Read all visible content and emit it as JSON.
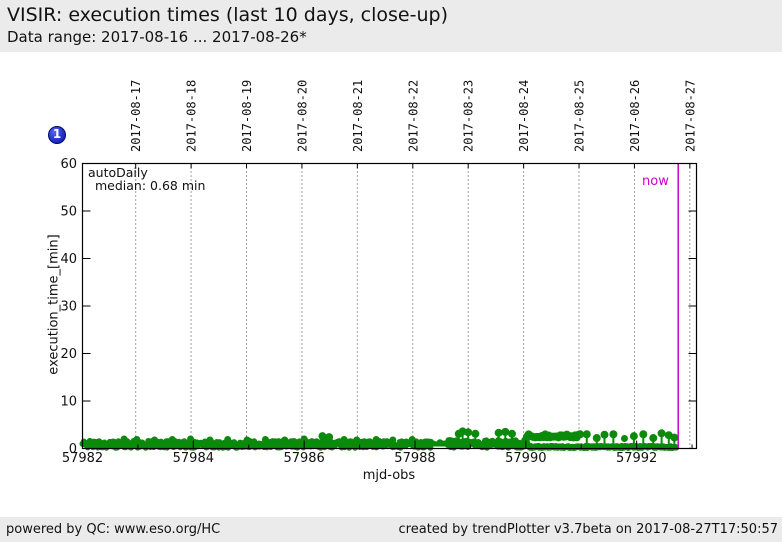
{
  "header": {
    "title": "VISIR: execution times (last 10 days, close-up)",
    "subtitle": "Data range: 2017-08-16 ... 2017-08-26*"
  },
  "badge": {
    "label": "1"
  },
  "footer": {
    "left": "powered by QC: www.eso.org/HC",
    "right": "created by trendPlotter v3.7beta on 2017-08-27T17:50:57"
  },
  "chart_data": {
    "type": "scatter",
    "title": "VISIR: execution times (last 10 days, close-up)",
    "xlabel": "mjd-obs",
    "ylabel": "execution_time_[min]",
    "xlim": [
      57982,
      57993.08
    ],
    "ylim": [
      0,
      60
    ],
    "grid": "vertical-dotted-at-dates",
    "legend": {
      "line1": "autoDaily",
      "line2": "median: 0.68 min"
    },
    "series_name": "autoDaily",
    "median_min": 0.68,
    "x_ticks_major": [
      57982,
      57984,
      57986,
      57988,
      57990,
      57992
    ],
    "x_ticks_minor": [
      57983,
      57985,
      57987,
      57989,
      57991,
      57993
    ],
    "y_ticks": [
      0,
      10,
      20,
      30,
      40,
      50,
      60
    ],
    "date_ticks": [
      {
        "label": "2017-08-17",
        "mjd": 57982.96
      },
      {
        "label": "2017-08-18",
        "mjd": 57983.96
      },
      {
        "label": "2017-08-19",
        "mjd": 57984.96
      },
      {
        "label": "2017-08-20",
        "mjd": 57985.96
      },
      {
        "label": "2017-08-21",
        "mjd": 57986.96
      },
      {
        "label": "2017-08-22",
        "mjd": 57987.96
      },
      {
        "label": "2017-08-23",
        "mjd": 57988.96
      },
      {
        "label": "2017-08-24",
        "mjd": 57989.96
      },
      {
        "label": "2017-08-25",
        "mjd": 57990.96
      },
      {
        "label": "2017-08-26",
        "mjd": 57991.96
      },
      {
        "label": "2017-08-27",
        "mjd": 57992.96
      }
    ],
    "now": {
      "label": "now",
      "mjd": 57992.75
    },
    "colors": {
      "series": "#0b8a0b",
      "series_dark": "#076e07",
      "now": "#cc00cc",
      "grid": "#444444",
      "axis": "#000000",
      "plot_bg": "#ffffff"
    },
    "dense_band_segments": [
      {
        "x0": 57982.0,
        "x1": 57988.3,
        "y0": 0.15,
        "y1": 1.6,
        "step": 0.012,
        "r": 3
      },
      {
        "x0": 57988.3,
        "x1": 57988.58,
        "y0": 0.7,
        "y1": 1.2,
        "step": 0.02,
        "r": 2.5
      },
      {
        "x0": 57988.58,
        "x1": 57990.05,
        "y0": 0.15,
        "y1": 1.8,
        "step": 0.012,
        "r": 3
      },
      {
        "x0": 57990.05,
        "x1": 57992.72,
        "y0": 0.1,
        "y1": 0.55,
        "step": 0.012,
        "r": 3
      }
    ],
    "cluster_segments": [
      {
        "x0": 57990.02,
        "x1": 57990.98,
        "y0": 2.3,
        "y1": 3.0,
        "step": 0.03,
        "r": 4
      }
    ],
    "points": [
      [
        57982.75,
        2.0
      ],
      [
        57982.98,
        1.9
      ],
      [
        57983.3,
        1.8
      ],
      [
        57983.62,
        1.9
      ],
      [
        57983.95,
        2.0
      ],
      [
        57984.3,
        1.8
      ],
      [
        57984.62,
        1.9
      ],
      [
        57984.97,
        1.8
      ],
      [
        57985.3,
        1.9
      ],
      [
        57985.65,
        1.8
      ],
      [
        57986.0,
        2.0
      ],
      [
        57986.33,
        2.6
      ],
      [
        57986.45,
        2.4
      ],
      [
        57986.72,
        1.9
      ],
      [
        57986.95,
        1.8
      ],
      [
        57987.3,
        1.9
      ],
      [
        57987.6,
        1.8
      ],
      [
        57987.95,
        1.9
      ],
      [
        57988.45,
        1.2
      ],
      [
        57988.79,
        3.1
      ],
      [
        57988.86,
        3.6
      ],
      [
        57988.96,
        3.4
      ],
      [
        57989.09,
        3.1
      ],
      [
        57989.51,
        3.3
      ],
      [
        57989.63,
        3.5
      ],
      [
        57989.75,
        3.1
      ],
      [
        57991.1,
        3.0
      ],
      [
        57991.28,
        2.2
      ],
      [
        57991.42,
        2.9
      ],
      [
        57991.58,
        3.0
      ],
      [
        57991.78,
        2.1
      ],
      [
        57991.95,
        2.6
      ],
      [
        57992.12,
        3.0
      ],
      [
        57992.3,
        2.2
      ],
      [
        57992.45,
        3.2
      ],
      [
        57992.58,
        2.8
      ],
      [
        57992.68,
        2.3
      ]
    ]
  }
}
